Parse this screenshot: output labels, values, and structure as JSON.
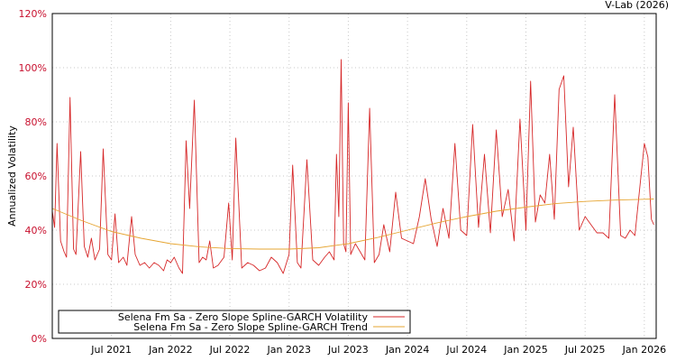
{
  "credit": "V-Lab (2026)",
  "chart_data": {
    "type": "line",
    "title": "",
    "xlabel": "",
    "ylabel": "Annualized Volatility",
    "ylim": [
      0,
      120
    ],
    "yticks": [
      0,
      20,
      40,
      60,
      80,
      100,
      120
    ],
    "ytick_labels": [
      "0%",
      "20%",
      "40%",
      "60%",
      "80%",
      "100%",
      "120%"
    ],
    "xlim": [
      2021.0,
      2026.1
    ],
    "xticks": [
      2021.5,
      2022.0,
      2022.5,
      2023.0,
      2023.5,
      2024.0,
      2024.5,
      2025.0,
      2025.5,
      2026.0
    ],
    "xtick_labels": [
      "Jul 2021",
      "Jan 2022",
      "Jul 2022",
      "Jan 2023",
      "Jul 2023",
      "Jan 2024",
      "Jul 2024",
      "Jan 2025",
      "Jul 2025",
      "Jan 2026"
    ],
    "grid": true,
    "legend_position": "bottom-left",
    "series": [
      {
        "name": "Selena Fm Sa - Zero Slope Spline-GARCH Volatility",
        "color": "#d62728",
        "x": [
          2021.0,
          2021.02,
          2021.04,
          2021.07,
          2021.1,
          2021.12,
          2021.15,
          2021.18,
          2021.2,
          2021.24,
          2021.27,
          2021.3,
          2021.33,
          2021.36,
          2021.4,
          2021.43,
          2021.47,
          2021.5,
          2021.53,
          2021.56,
          2021.6,
          2021.63,
          2021.67,
          2021.7,
          2021.74,
          2021.78,
          2021.82,
          2021.86,
          2021.9,
          2021.94,
          2021.97,
          2022.0,
          2022.03,
          2022.07,
          2022.1,
          2022.13,
          2022.16,
          2022.2,
          2022.24,
          2022.27,
          2022.3,
          2022.33,
          2022.36,
          2022.4,
          2022.45,
          2022.49,
          2022.52,
          2022.55,
          2022.6,
          2022.65,
          2022.7,
          2022.75,
          2022.8,
          2022.85,
          2022.9,
          2022.95,
          2023.0,
          2023.03,
          2023.07,
          2023.1,
          2023.15,
          2023.2,
          2023.25,
          2023.3,
          2023.34,
          2023.38,
          2023.4,
          2023.42,
          2023.44,
          2023.46,
          2023.48,
          2023.5,
          2023.52,
          2023.56,
          2023.6,
          2023.64,
          2023.68,
          2023.72,
          2023.76,
          2023.8,
          2023.85,
          2023.9,
          2023.95,
          2024.0,
          2024.05,
          2024.1,
          2024.15,
          2024.2,
          2024.25,
          2024.3,
          2024.35,
          2024.4,
          2024.45,
          2024.5,
          2024.55,
          2024.6,
          2024.65,
          2024.7,
          2024.75,
          2024.8,
          2024.85,
          2024.9,
          2024.95,
          2025.0,
          2025.04,
          2025.08,
          2025.12,
          2025.16,
          2025.2,
          2025.24,
          2025.28,
          2025.32,
          2025.36,
          2025.4,
          2025.45,
          2025.5,
          2025.55,
          2025.6,
          2025.65,
          2025.7,
          2025.75,
          2025.8,
          2025.84,
          2025.88,
          2025.92,
          2025.96,
          2026.0,
          2026.03,
          2026.06,
          2026.08
        ],
        "values": [
          47,
          41,
          72,
          36,
          32,
          30,
          89,
          33,
          31,
          69,
          34,
          30,
          37,
          29,
          33,
          70,
          31,
          29,
          46,
          28,
          30,
          27,
          45,
          31,
          27,
          28,
          26,
          28,
          27,
          25,
          29,
          28,
          30,
          26,
          24,
          73,
          48,
          88,
          28,
          30,
          29,
          36,
          26,
          27,
          30,
          50,
          29,
          74,
          26,
          28,
          27,
          25,
          26,
          30,
          28,
          24,
          31,
          64,
          28,
          26,
          66,
          29,
          27,
          30,
          32,
          29,
          68,
          45,
          103,
          35,
          32,
          87,
          31,
          35,
          32,
          29,
          85,
          28,
          31,
          42,
          32,
          54,
          37,
          36,
          35,
          45,
          59,
          44,
          34,
          48,
          37,
          72,
          40,
          38,
          79,
          41,
          68,
          39,
          77,
          45,
          55,
          36,
          81,
          40,
          95,
          43,
          53,
          50,
          68,
          44,
          92,
          97,
          56,
          78,
          40,
          45,
          42,
          39,
          39,
          37,
          90,
          38,
          37,
          40,
          38,
          55,
          72,
          67,
          44,
          42
        ]
      },
      {
        "name": "Selena Fm Sa - Zero Slope Spline-GARCH Trend",
        "color": "#e6a532",
        "x": [
          2021.0,
          2021.25,
          2021.5,
          2021.75,
          2022.0,
          2022.25,
          2022.5,
          2022.75,
          2023.0,
          2023.25,
          2023.5,
          2023.75,
          2024.0,
          2024.25,
          2024.5,
          2024.75,
          2025.0,
          2025.25,
          2025.5,
          2025.75,
          2026.0,
          2026.08
        ],
        "values": [
          48,
          43.5,
          39.5,
          37,
          35,
          33.8,
          33.2,
          33,
          33,
          33.5,
          35,
          37.3,
          40,
          42.7,
          45,
          47,
          48.5,
          49.8,
          50.6,
          51.1,
          51.4,
          51.5
        ]
      }
    ]
  }
}
